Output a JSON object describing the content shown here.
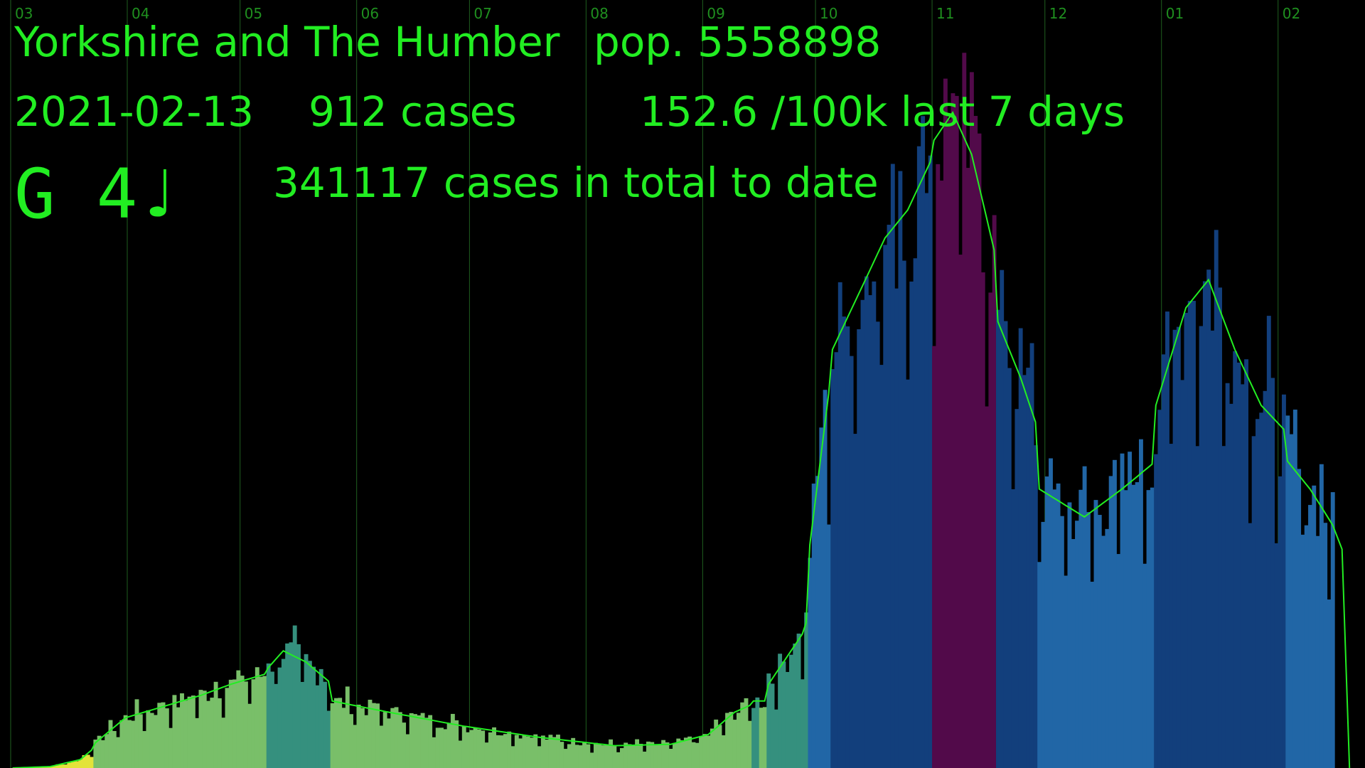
{
  "info": {
    "region": "Yorkshire and The Humber",
    "population": "pop. 5558898",
    "date": "2021-02-13",
    "cases": "912 cases",
    "rate": "152.6 /100k last 7 days",
    "note": "G 4♩",
    "total": "341117 cases in total to date"
  },
  "colors": {
    "background": "#000000",
    "text": "#22ee22",
    "gridline": "#1f5f1f",
    "smoothed_line": "#22ee22",
    "band_colors": [
      "#e3e33a",
      "#79bf69",
      "#35907e",
      "#2166a6",
      "#123f7c",
      "#520a4a"
    ]
  },
  "chart_data": {
    "type": "bar",
    "x_axis": "time (months)",
    "month_ticks": [
      "03",
      "04",
      "05",
      "06",
      "07",
      "08",
      "09",
      "10",
      "11",
      "12",
      "01",
      "02"
    ],
    "grid": true,
    "series_envelope_ylim": [
      0,
      2600
    ],
    "segments": [
      {
        "from_day": 0,
        "to_day": 22,
        "color_index": 0,
        "profile": [
          [
            0,
            0
          ],
          [
            10,
            5
          ],
          [
            18,
            30
          ],
          [
            22,
            75
          ]
        ]
      },
      {
        "from_day": 22,
        "to_day": 68,
        "color_index": 1,
        "profile": [
          [
            22,
            90
          ],
          [
            30,
            180
          ],
          [
            40,
            220
          ],
          [
            50,
            260
          ],
          [
            58,
            300
          ],
          [
            68,
            340
          ]
        ]
      },
      {
        "from_day": 68,
        "to_day": 85,
        "color_index": 2,
        "profile": [
          [
            68,
            360
          ],
          [
            72,
            420
          ],
          [
            78,
            380
          ],
          [
            85,
            300
          ]
        ]
      },
      {
        "from_day": 85,
        "to_day": 197,
        "color_index": 1,
        "profile": [
          [
            85,
            240
          ],
          [
            100,
            200
          ],
          [
            120,
            150
          ],
          [
            140,
            110
          ],
          [
            160,
            80
          ],
          [
            175,
            85
          ],
          [
            185,
            120
          ],
          [
            192,
            200
          ],
          [
            197,
            230
          ]
        ]
      },
      {
        "from_day": 197,
        "to_day": 199,
        "color_index": 2,
        "profile": [
          [
            197,
            240
          ],
          [
            199,
            240
          ]
        ]
      },
      {
        "from_day": 199,
        "to_day": 201,
        "color_index": 1,
        "profile": [
          [
            199,
            240
          ],
          [
            201,
            240
          ]
        ]
      },
      {
        "from_day": 201,
        "to_day": 212,
        "color_index": 2,
        "profile": [
          [
            201,
            300
          ],
          [
            205,
            380
          ],
          [
            210,
            480
          ],
          [
            212,
            560
          ]
        ]
      },
      {
        "from_day": 212,
        "to_day": 218,
        "color_index": 3,
        "profile": [
          [
            212,
            800
          ],
          [
            218,
            1450
          ]
        ]
      },
      {
        "from_day": 218,
        "to_day": 245,
        "color_index": 4,
        "profile": [
          [
            218,
            1500
          ],
          [
            225,
            1700
          ],
          [
            232,
            1900
          ],
          [
            238,
            2000
          ],
          [
            245,
            2200
          ]
        ]
      },
      {
        "from_day": 245,
        "to_day": 262,
        "color_index": 5,
        "profile": [
          [
            245,
            2250
          ],
          [
            250,
            2350
          ],
          [
            255,
            2200
          ],
          [
            262,
            1800
          ]
        ]
      },
      {
        "from_day": 262,
        "to_day": 273,
        "color_index": 4,
        "profile": [
          [
            262,
            1600
          ],
          [
            268,
            1400
          ],
          [
            273,
            1200
          ]
        ]
      },
      {
        "from_day": 273,
        "to_day": 304,
        "color_index": 3,
        "profile": [
          [
            273,
            1000
          ],
          [
            285,
            900
          ],
          [
            295,
            1000
          ],
          [
            304,
            1100
          ]
        ]
      },
      {
        "from_day": 304,
        "to_day": 339,
        "color_index": 4,
        "profile": [
          [
            304,
            1300
          ],
          [
            312,
            1650
          ],
          [
            318,
            1750
          ],
          [
            325,
            1500
          ],
          [
            332,
            1300
          ],
          [
            339,
            1200
          ]
        ]
      },
      {
        "from_day": 339,
        "to_day": 352,
        "color_index": 3,
        "profile": [
          [
            339,
            1100
          ],
          [
            345,
            1000
          ],
          [
            352,
            850
          ]
        ]
      }
    ],
    "smoothed_line_tail_day": 356
  }
}
